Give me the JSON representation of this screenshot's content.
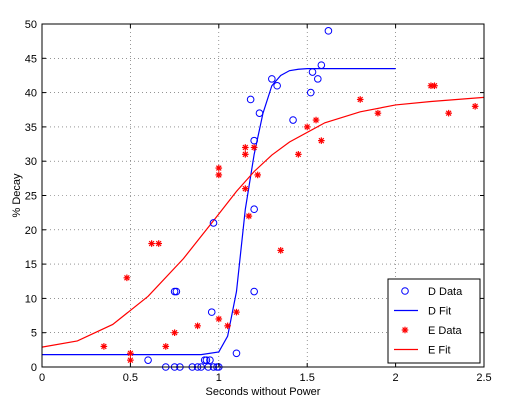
{
  "chart_data": {
    "type": "scatter",
    "xlabel": "Seconds without Power",
    "ylabel": "% Decay",
    "xlim": [
      0,
      2.5
    ],
    "ylim": [
      0,
      50
    ],
    "xticks": [
      "0",
      "0.5",
      "1",
      "1.5",
      "2",
      "2.5"
    ],
    "yticks": [
      "0",
      "5",
      "10",
      "15",
      "20",
      "25",
      "30",
      "35",
      "40",
      "45",
      "50"
    ],
    "grid": true,
    "legend_position": "bottom-right",
    "series": [
      {
        "name": "D Data",
        "kind": "markers",
        "marker": "circle",
        "color": "#0000ff",
        "x": [
          0.6,
          0.7,
          0.75,
          0.76,
          0.78,
          0.85,
          0.88,
          0.9,
          0.92,
          0.93,
          0.94,
          0.95,
          0.97,
          0.99,
          1.0,
          0.75,
          0.96,
          0.97,
          1.1,
          1.18,
          1.2,
          1.2,
          1.2,
          1.23,
          1.3,
          1.33,
          1.42,
          1.52,
          1.53,
          1.56,
          1.58,
          1.62
        ],
        "y": [
          1,
          0,
          0,
          11,
          0,
          0,
          0,
          0,
          1,
          1,
          0,
          1,
          0,
          0,
          0,
          11,
          8,
          21,
          2,
          39,
          23,
          11,
          33,
          37,
          42,
          41,
          36,
          40,
          43,
          42,
          44,
          49
        ]
      },
      {
        "name": "D Fit",
        "kind": "line",
        "color": "#0000ff",
        "x": [
          0,
          0.9,
          1.0,
          1.05,
          1.1,
          1.15,
          1.2,
          1.25,
          1.3,
          1.35,
          1.4,
          1.45,
          1.5,
          2.0
        ],
        "y": [
          1.8,
          1.8,
          2.2,
          4.5,
          11,
          23,
          31,
          37,
          41,
          42.5,
          43.2,
          43.4,
          43.5,
          43.5
        ]
      },
      {
        "name": "E Data",
        "kind": "markers",
        "marker": "asterisk",
        "color": "#ff0000",
        "x": [
          0.35,
          0.48,
          0.5,
          0.5,
          0.62,
          0.66,
          0.7,
          0.75,
          0.88,
          1.0,
          1.0,
          1.0,
          1.05,
          1.1,
          1.15,
          1.15,
          1.15,
          1.17,
          1.2,
          1.22,
          1.35,
          1.45,
          1.5,
          1.55,
          1.58,
          1.8,
          1.9,
          2.2,
          2.22,
          2.3,
          2.45
        ],
        "y": [
          3,
          13,
          2,
          1,
          18,
          18,
          3,
          5,
          6,
          7,
          28,
          29,
          6,
          8,
          31,
          26,
          32,
          22,
          32,
          28,
          17,
          31,
          35,
          36,
          33,
          39,
          37,
          41,
          41,
          37,
          38
        ]
      },
      {
        "name": "E Fit",
        "kind": "line",
        "color": "#ff0000",
        "x": [
          0,
          0.2,
          0.4,
          0.6,
          0.8,
          1.0,
          1.1,
          1.2,
          1.3,
          1.4,
          1.6,
          1.8,
          2.0,
          2.2,
          2.5
        ],
        "y": [
          2.9,
          3.8,
          6.2,
          10.3,
          15.8,
          22.3,
          25.6,
          28.5,
          30.9,
          32.8,
          35.6,
          37.2,
          38.2,
          38.7,
          39.3
        ]
      }
    ]
  }
}
